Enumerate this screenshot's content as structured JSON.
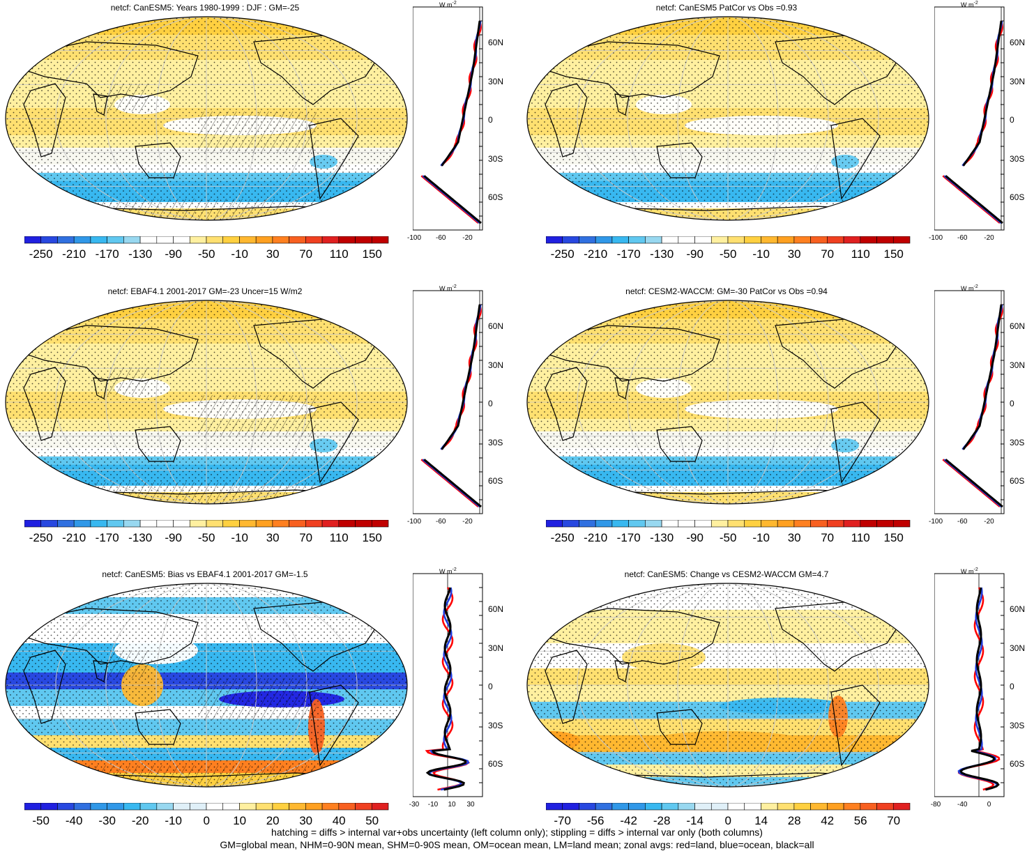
{
  "panels": [
    {
      "id": "p1",
      "title": "netcf: CanESM5: Years 1980-1999 : DJF : GM=-25",
      "kind": "abs",
      "scale": "abs",
      "zonal_xticks": [
        "-100",
        "-60",
        "-20"
      ],
      "hatch": true
    },
    {
      "id": "p2",
      "title": "netcf: CanESM5 PatCor vs Obs =0.93",
      "kind": "abs",
      "scale": "abs",
      "zonal_xticks": [
        "-100",
        "-60",
        "-20"
      ],
      "hatch": false
    },
    {
      "id": "p3",
      "title": "netcf: EBAF4.1 2001-2017 GM=-23 Uncer=15 W/m2",
      "kind": "abs",
      "scale": "abs",
      "zonal_xticks": [
        "-100",
        "-60",
        "-20"
      ],
      "hatch": true
    },
    {
      "id": "p4",
      "title": "netcf: CESM2-WACCM: GM=-30 PatCor vs Obs =0.94",
      "kind": "abs",
      "scale": "abs",
      "zonal_xticks": [
        "-100",
        "-60",
        "-20"
      ],
      "hatch": false
    },
    {
      "id": "p5",
      "title": "netcf: CanESM5: Bias vs EBAF4.1 2001-2017 GM=-1.5",
      "kind": "bias",
      "scale": "bias",
      "zonal_xticks": [
        "-30",
        "-10",
        "10",
        "30"
      ],
      "hatch": true
    },
    {
      "id": "p6",
      "title": "netcf: CanESM5: Change vs CESM2-WACCM GM=4.7",
      "kind": "change",
      "scale": "change",
      "zonal_xticks": [
        "-80",
        "-40",
        "0"
      ],
      "hatch": false
    }
  ],
  "colorbars": {
    "abs": [
      "-250",
      "-210",
      "-170",
      "-130",
      "-90",
      "-50",
      "-10",
      "30",
      "70",
      "110",
      "150"
    ],
    "bias": [
      "-50",
      "-40",
      "-30",
      "-20",
      "-10",
      "0",
      "10",
      "20",
      "30",
      "40",
      "50"
    ],
    "change": [
      "-70",
      "-56",
      "-42",
      "-28",
      "-14",
      "0",
      "14",
      "28",
      "42",
      "56",
      "70"
    ]
  },
  "zonal_lat_labels": [
    "60N",
    "30N",
    "0",
    "30S",
    "60S"
  ],
  "zonal_unit": "W m",
  "zonal_unit_sup": "-2",
  "colors": {
    "blue_scale": [
      "#2020e0",
      "#2848e0",
      "#3070e0",
      "#3098e8",
      "#38b8f0",
      "#60c8f0",
      "#98d8f0"
    ],
    "white": "#ffffff",
    "warm_scale": [
      "#fff0a0",
      "#ffe070",
      "#ffd040",
      "#ffb830",
      "#ffa020",
      "#ff8020",
      "#f86020",
      "#f04020",
      "#e02020",
      "#c00000"
    ],
    "land_line": "#000000",
    "zonal_land": "#ff0000",
    "zonal_ocean": "#1f3fe0",
    "zonal_all": "#000000"
  },
  "footer": {
    "line1": "hatching = diffs > internal var+obs uncertainty (left column only); stippling = diffs > internal var only (both columns)",
    "line2": "GM=global mean, NHM=0-90N mean, SHM=0-90S mean, OM=ocean mean, LM=land mean; zonal avgs: red=land, blue=ocean, black=all"
  }
}
